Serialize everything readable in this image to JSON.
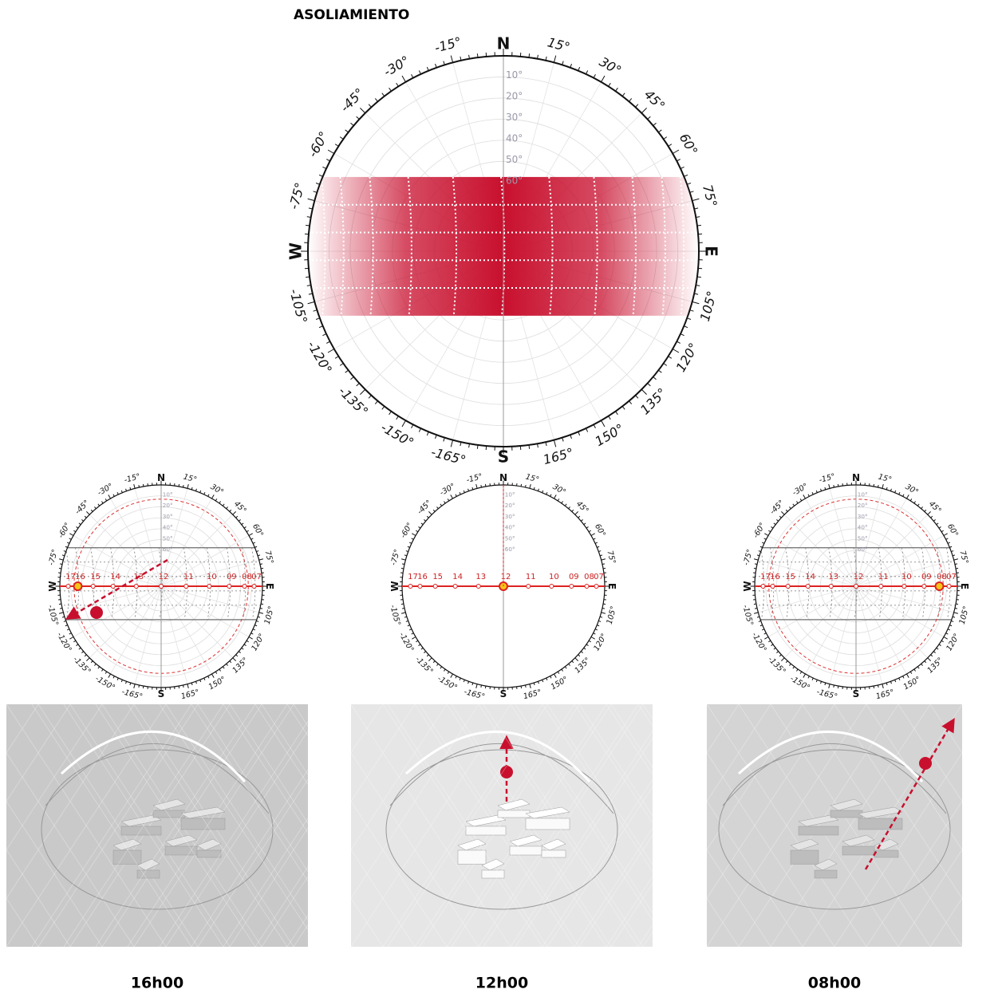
{
  "title": "ASOLIAMIENTO",
  "ring_labels": [
    "N",
    "15°",
    "30°",
    "45°",
    "60°",
    "75°",
    "E",
    "105°",
    "120°",
    "135°",
    "150°",
    "165°",
    "S",
    "-165°",
    "-150°",
    "-135°",
    "-120°",
    "-105°",
    "W",
    "-75°",
    "-60°",
    "-45°",
    "-30°",
    "-15°"
  ],
  "altitude_labels": [
    "10°",
    "20°",
    "30°",
    "40°",
    "50°",
    "60°"
  ],
  "hour_labels": [
    "17",
    "16",
    "15",
    "14",
    "13",
    "12",
    "11",
    "10",
    "09",
    "08",
    "07"
  ],
  "views": [
    {
      "caption": "16h00"
    },
    {
      "caption": "12h00"
    },
    {
      "caption": "08h00"
    }
  ]
}
